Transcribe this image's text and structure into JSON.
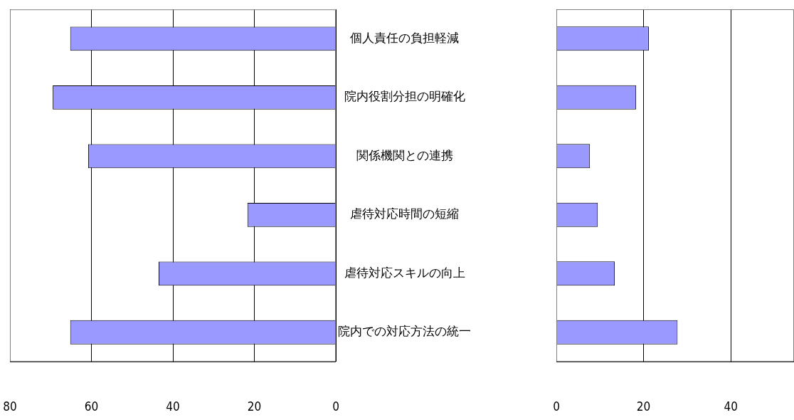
{
  "chart_data": [
    {
      "type": "bar",
      "orientation": "horizontal",
      "categories": [
        "個人責任の負担軽減",
        "院内役割分担の明確化",
        "関係機関との連携",
        "虐待対応時間の短縮",
        "虐待対応スキルの向上",
        "院内での対応方法の統一"
      ],
      "values": [
        65.2,
        69.5,
        60.8,
        21.7,
        43.5,
        65.2
      ],
      "color": "#9999ff",
      "xlim": [
        80,
        0
      ],
      "xticks": [
        80,
        60,
        40,
        20,
        0
      ],
      "grid": "x",
      "legend": false
    },
    {
      "type": "bar",
      "orientation": "horizontal",
      "categories": [
        null,
        null,
        null,
        null,
        null,
        null
      ],
      "values": [
        21.2,
        18.3,
        7.7,
        9.5,
        13.4,
        27.8
      ],
      "color": "#9999ff",
      "xlim": [
        0,
        54.5
      ],
      "xticks": [
        0,
        20,
        40
      ],
      "grid": "x",
      "legend": false,
      "tick_labels": "x"
    }
  ]
}
